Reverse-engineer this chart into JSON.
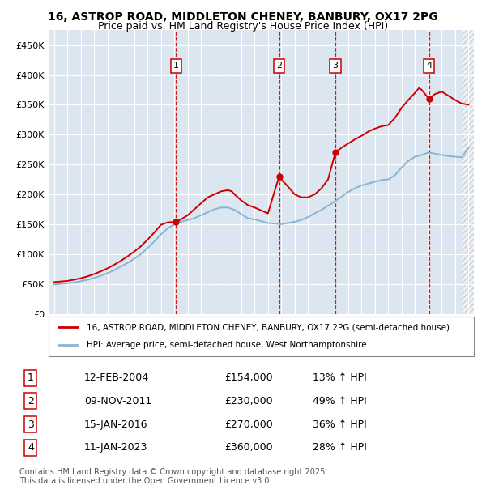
{
  "title_line1": "16, ASTROP ROAD, MIDDLETON CHENEY, BANBURY, OX17 2PG",
  "title_line2": "Price paid vs. HM Land Registry's House Price Index (HPI)",
  "background_color": "#dce6f1",
  "grid_color": "#ffffff",
  "red_line_color": "#cc0000",
  "blue_line_color": "#8ab4d4",
  "ylim": [
    0,
    475000
  ],
  "yticks": [
    0,
    50000,
    100000,
    150000,
    200000,
    250000,
    300000,
    350000,
    400000,
    450000
  ],
  "ytick_labels": [
    "£0",
    "£50K",
    "£100K",
    "£150K",
    "£200K",
    "£250K",
    "£300K",
    "£350K",
    "£400K",
    "£450K"
  ],
  "legend_label_red": "16, ASTROP ROAD, MIDDLETON CHENEY, BANBURY, OX17 2PG (semi-detached house)",
  "legend_label_blue": "HPI: Average price, semi-detached house, West Northamptonshire",
  "footer": "Contains HM Land Registry data © Crown copyright and database right 2025.\nThis data is licensed under the Open Government Licence v3.0.",
  "table": [
    {
      "num": 1,
      "date": "12-FEB-2004",
      "price": "£154,000",
      "pct": "13% ↑ HPI"
    },
    {
      "num": 2,
      "date": "09-NOV-2011",
      "price": "£230,000",
      "pct": "49% ↑ HPI"
    },
    {
      "num": 3,
      "date": "15-JAN-2016",
      "price": "£270,000",
      "pct": "36% ↑ HPI"
    },
    {
      "num": 4,
      "date": "11-JAN-2023",
      "price": "£360,000",
      "pct": "28% ↑ HPI"
    }
  ],
  "hpi_years": [
    1995.0,
    1995.5,
    1996.0,
    1996.5,
    1997.0,
    1997.5,
    1998.0,
    1998.5,
    1999.0,
    1999.5,
    2000.0,
    2000.5,
    2001.0,
    2001.5,
    2002.0,
    2002.5,
    2003.0,
    2003.5,
    2004.0,
    2004.5,
    2005.0,
    2005.5,
    2006.0,
    2006.5,
    2007.0,
    2007.5,
    2008.0,
    2008.5,
    2009.0,
    2009.5,
    2010.0,
    2010.5,
    2011.0,
    2011.5,
    2012.0,
    2012.5,
    2013.0,
    2013.5,
    2014.0,
    2014.5,
    2015.0,
    2015.5,
    2016.0,
    2016.5,
    2017.0,
    2017.5,
    2018.0,
    2018.5,
    2019.0,
    2019.5,
    2020.0,
    2020.5,
    2021.0,
    2021.5,
    2022.0,
    2022.5,
    2023.0,
    2023.5,
    2024.0,
    2024.5,
    2025.0,
    2025.5,
    2026.0
  ],
  "hpi_values": [
    49000,
    50000,
    51000,
    52500,
    54500,
    57000,
    60000,
    63500,
    68000,
    73000,
    79000,
    85000,
    92000,
    100000,
    110000,
    121000,
    133000,
    143000,
    150000,
    154000,
    157000,
    160000,
    165000,
    170000,
    175000,
    178000,
    178000,
    174000,
    167000,
    160000,
    158000,
    155000,
    152000,
    151000,
    150000,
    152000,
    154000,
    157000,
    162000,
    168000,
    174000,
    181000,
    188000,
    196000,
    204000,
    210000,
    215000,
    218000,
    221000,
    224000,
    225000,
    232000,
    245000,
    256000,
    263000,
    266000,
    270000,
    268000,
    266000,
    264000,
    263000,
    262000,
    278000
  ],
  "red_years": [
    1995.0,
    1995.5,
    1996.0,
    1996.5,
    1997.0,
    1997.5,
    1998.0,
    1998.5,
    1999.0,
    1999.5,
    2000.0,
    2000.5,
    2001.0,
    2001.5,
    2002.0,
    2002.5,
    2003.0,
    2003.5,
    2004.12,
    2004.5,
    2005.0,
    2005.5,
    2006.0,
    2006.5,
    2007.0,
    2007.5,
    2008.0,
    2008.3,
    2008.5,
    2009.0,
    2009.5,
    2010.0,
    2010.5,
    2011.0,
    2011.84,
    2012.0,
    2012.5,
    2013.0,
    2013.5,
    2014.0,
    2014.5,
    2015.0,
    2015.5,
    2016.04,
    2016.5,
    2017.0,
    2017.5,
    2018.0,
    2018.5,
    2019.0,
    2019.5,
    2020.0,
    2020.5,
    2021.0,
    2021.5,
    2022.0,
    2022.3,
    2022.5,
    2023.04,
    2023.5,
    2024.0,
    2024.5,
    2025.0,
    2025.5,
    2026.0
  ],
  "red_values": [
    53000,
    54000,
    55000,
    57000,
    59500,
    62500,
    66500,
    71000,
    76000,
    82000,
    88500,
    96000,
    104000,
    113000,
    124000,
    136000,
    149000,
    153000,
    154000,
    158000,
    165000,
    175000,
    185000,
    195000,
    200000,
    205000,
    207000,
    205000,
    200000,
    190000,
    182000,
    178000,
    173000,
    168000,
    230000,
    225000,
    213000,
    200000,
    195000,
    195000,
    200000,
    210000,
    225000,
    270000,
    278000,
    285000,
    292000,
    298000,
    305000,
    310000,
    314000,
    316000,
    328000,
    345000,
    358000,
    370000,
    378000,
    375000,
    360000,
    368000,
    372000,
    365000,
    358000,
    352000,
    350000
  ]
}
